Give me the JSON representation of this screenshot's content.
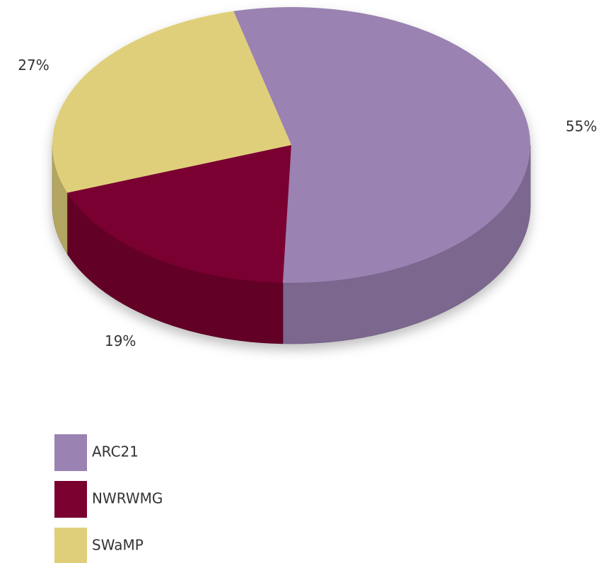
{
  "chart_data": {
    "type": "pie",
    "categories": [
      "ARC21",
      "NWRWMG",
      "SWaMP"
    ],
    "values": [
      55,
      19,
      27
    ],
    "value_labels": [
      "55%",
      "19%",
      "27%"
    ],
    "colors": [
      "#9a82b2",
      "#7a0030",
      "#e0cf7a"
    ],
    "legend": "bottom-left"
  }
}
